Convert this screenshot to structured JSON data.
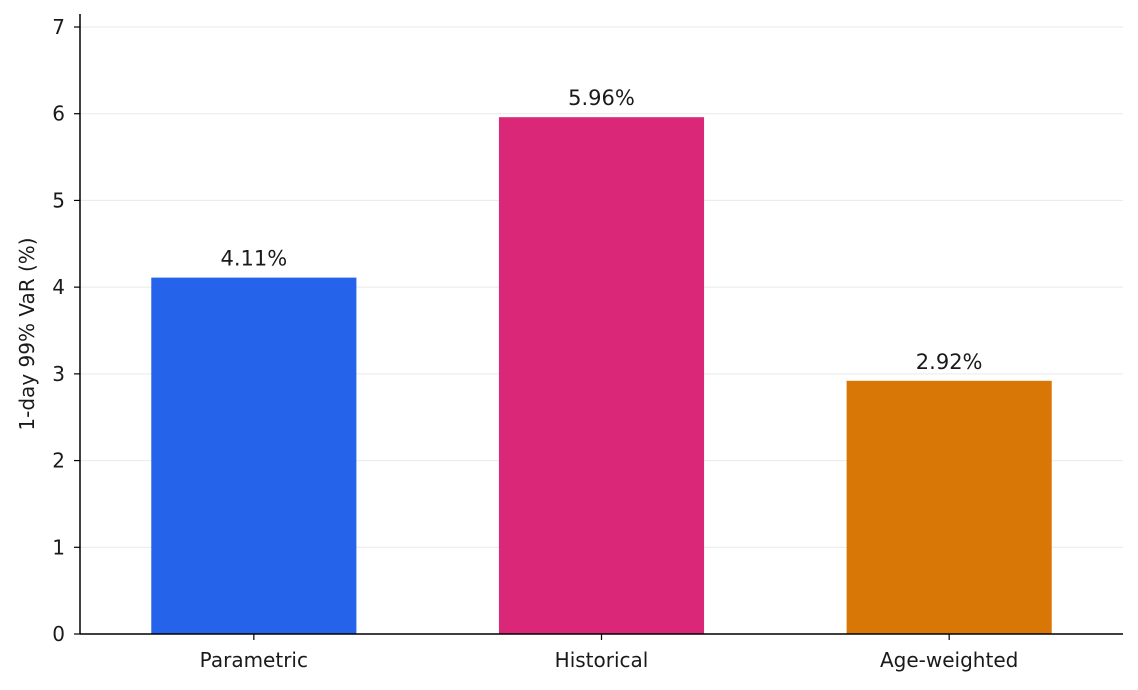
{
  "chart_data": {
    "type": "bar",
    "categories": [
      "Parametric",
      "Historical",
      "Age-weighted"
    ],
    "values": [
      4.11,
      5.96,
      2.92
    ],
    "data_labels": [
      "4.11%",
      "5.96%",
      "2.92%"
    ],
    "colors": [
      "#2563eb",
      "#db2777",
      "#d97706"
    ],
    "title": "",
    "xlabel": "",
    "ylabel": "1-day 99% VaR (%)",
    "ylim": [
      0,
      7.15
    ],
    "yticks": [
      0,
      1,
      2,
      3,
      4,
      5,
      6,
      7
    ],
    "grid": "horizontal",
    "legend": "none"
  }
}
